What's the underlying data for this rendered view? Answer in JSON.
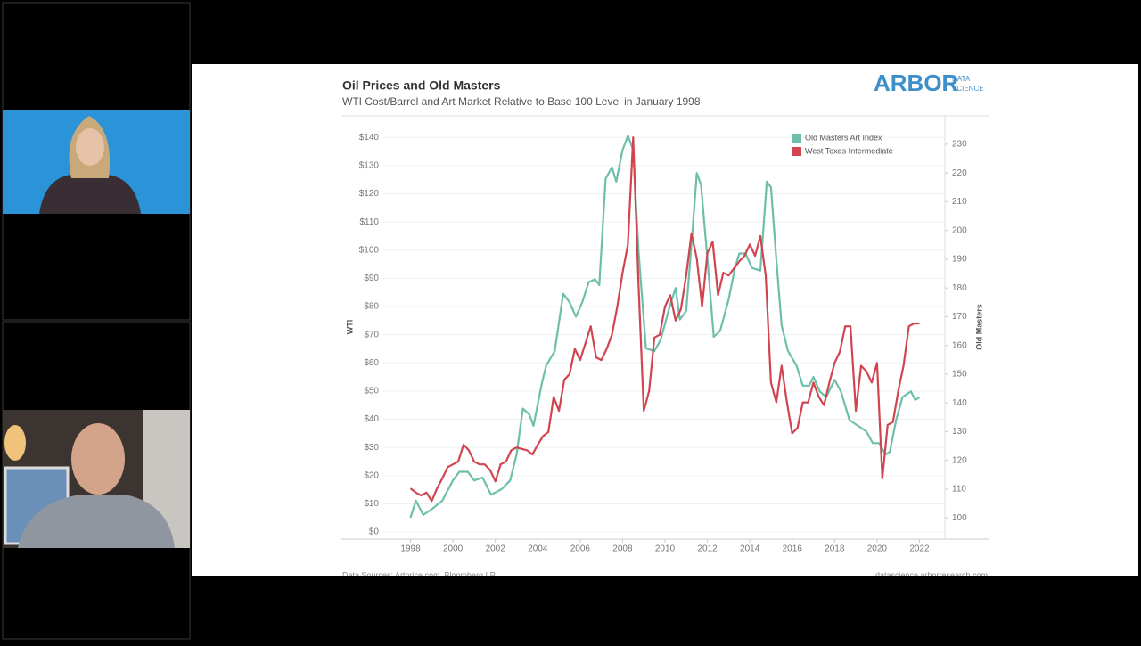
{
  "logo": {
    "word": "ARBOR",
    "line1": "DATA",
    "line2": "SCIENCE"
  },
  "footer": {
    "sources": "Data Sources: Artprice.com, Bloomberg LP",
    "site": "datascience.arborresearch.com"
  },
  "chart_data": {
    "type": "line",
    "title": "Oil Prices and Old Masters",
    "subtitle": "WTI Cost/Barrel and Art Market Relative to Base 100 Level in January 1998",
    "y_label": "WTI",
    "y2_label": "Old Masters",
    "xlim": [
      1996.8,
      2023.2
    ],
    "xticks": [
      1998,
      2000,
      2002,
      2004,
      2006,
      2008,
      2010,
      2012,
      2014,
      2016,
      2018,
      2020,
      2022
    ],
    "ylim": [
      -2.5,
      144.5
    ],
    "yticks": [
      {
        "value": 0,
        "label": "$0"
      },
      {
        "value": 10,
        "label": "$10"
      },
      {
        "value": 20,
        "label": "$20"
      },
      {
        "value": 30,
        "label": "$30"
      },
      {
        "value": 40,
        "label": "$40"
      },
      {
        "value": 50,
        "label": "$50"
      },
      {
        "value": 60,
        "label": "$60"
      },
      {
        "value": 70,
        "label": "$70"
      },
      {
        "value": 80,
        "label": "$80"
      },
      {
        "value": 90,
        "label": "$90"
      },
      {
        "value": 100,
        "label": "$100"
      },
      {
        "value": 110,
        "label": "$110"
      },
      {
        "value": 120,
        "label": "$120"
      },
      {
        "value": 130,
        "label": "$130"
      },
      {
        "value": 140,
        "label": "$140"
      }
    ],
    "y2lim": [
      92.6,
      236.8
    ],
    "y2ticks": [
      100,
      110,
      120,
      130,
      140,
      150,
      160,
      170,
      180,
      190,
      200,
      210,
      220,
      230
    ],
    "grid": true,
    "legend": "top-right",
    "series": [
      {
        "name": "Old Masters Art Index",
        "color": "#6dbfa9",
        "axis": "y2",
        "x": [
          1998,
          1998.25,
          1998.6,
          1999,
          1999.5,
          2000,
          2000.3,
          2000.7,
          2001,
          2001.4,
          2001.8,
          2002.3,
          2002.7,
          2003,
          2003.3,
          2003.6,
          2003.8,
          2004.2,
          2004.4,
          2004.8,
          2005.2,
          2005.5,
          2005.8,
          2006.1,
          2006.4,
          2006.7,
          2006.9,
          2007.2,
          2007.5,
          2007.7,
          2008,
          2008.25,
          2008.5,
          2008.75,
          2009.1,
          2009.5,
          2009.8,
          2010.2,
          2010.5,
          2010.7,
          2011,
          2011.3,
          2011.5,
          2011.7,
          2012,
          2012.3,
          2012.6,
          2013,
          2013.3,
          2013.5,
          2013.8,
          2014.1,
          2014.5,
          2014.8,
          2015,
          2015.25,
          2015.5,
          2015.8,
          2016.2,
          2016.5,
          2016.8,
          2017,
          2017.3,
          2017.6,
          2018,
          2018.3,
          2018.7,
          2019.1,
          2019.5,
          2019.8,
          2020.1,
          2020.4,
          2020.6,
          2020.9,
          2021.2,
          2021.6,
          2021.8,
          2022
        ],
        "values": [
          100,
          106,
          101,
          103,
          106,
          113,
          116,
          116,
          113,
          114,
          108,
          110,
          113,
          122,
          138,
          136,
          132,
          147,
          153,
          158,
          178,
          175,
          170,
          175,
          182,
          183,
          181,
          218,
          222,
          217,
          228,
          233,
          228,
          193,
          159,
          158,
          162,
          173,
          180,
          169,
          172,
          200,
          220,
          216,
          190,
          163,
          165,
          176,
          187,
          192,
          192,
          187,
          186,
          217,
          215,
          190,
          167,
          158,
          153,
          146,
          146,
          149,
          144,
          142,
          148,
          144,
          134,
          132,
          130,
          126,
          126,
          122,
          123,
          134,
          142,
          144,
          141,
          142
        ]
      },
      {
        "name": "West Texas Intermediate",
        "color": "#d04550",
        "axis": "y",
        "x": [
          1998,
          1998.25,
          1998.5,
          1998.75,
          1999,
          1999.25,
          1999.5,
          1999.75,
          2000,
          2000.25,
          2000.5,
          2000.75,
          2001,
          2001.25,
          2001.5,
          2001.75,
          2002,
          2002.25,
          2002.5,
          2002.75,
          2003,
          2003.5,
          2003.75,
          2004,
          2004.25,
          2004.5,
          2004.75,
          2005,
          2005.25,
          2005.5,
          2005.75,
          2006,
          2006.25,
          2006.5,
          2006.75,
          2007,
          2007.25,
          2007.5,
          2007.75,
          2008,
          2008.25,
          2008.5,
          2008.75,
          2009,
          2009.25,
          2009.5,
          2009.75,
          2010,
          2010.25,
          2010.5,
          2010.75,
          2011,
          2011.25,
          2011.5,
          2011.75,
          2012,
          2012.25,
          2012.5,
          2012.75,
          2013,
          2013.5,
          2013.75,
          2014,
          2014.25,
          2014.5,
          2014.75,
          2015,
          2015.25,
          2015.5,
          2015.75,
          2016,
          2016.25,
          2016.5,
          2016.75,
          2017,
          2017.25,
          2017.5,
          2017.75,
          2018,
          2018.25,
          2018.5,
          2018.75,
          2019,
          2019.25,
          2019.5,
          2019.75,
          2020,
          2020.25,
          2020.5,
          2020.75,
          2021,
          2021.25,
          2021.5,
          2021.75,
          2022
        ],
        "values": [
          15.5,
          14,
          13,
          14,
          11,
          15.5,
          19,
          23,
          24,
          25,
          31,
          29,
          25,
          24,
          24,
          22,
          18,
          24,
          25,
          29,
          30,
          29,
          27.5,
          31,
          34,
          35.5,
          48,
          43,
          54,
          56,
          65,
          61,
          67,
          73,
          62,
          61,
          65,
          70,
          80,
          92,
          102,
          140,
          88,
          43,
          50,
          69,
          70,
          80,
          84,
          75,
          79,
          91,
          106,
          97,
          80,
          99,
          103,
          84,
          92,
          91,
          96,
          98,
          102,
          98,
          105,
          91,
          53,
          46,
          59,
          46,
          35,
          37,
          46,
          46,
          53,
          48,
          45,
          53,
          60,
          64,
          73,
          73,
          43,
          59,
          57,
          53,
          60,
          19,
          38,
          39,
          50,
          59,
          73,
          74,
          74
        ]
      }
    ]
  }
}
